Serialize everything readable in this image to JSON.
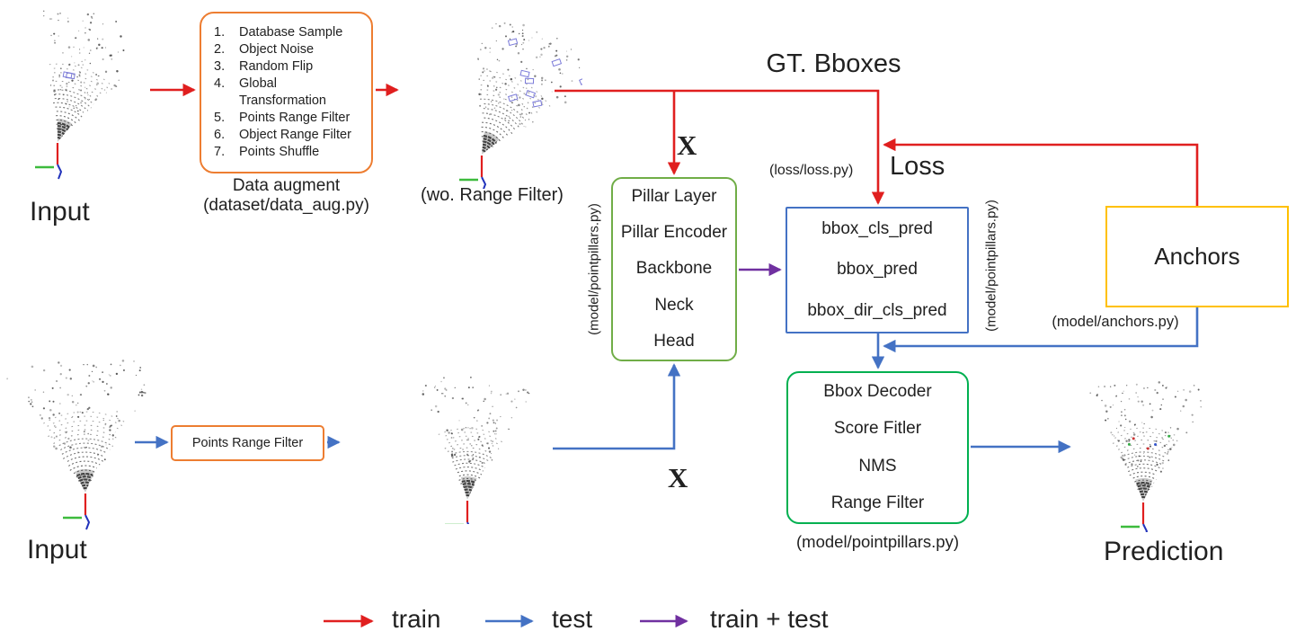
{
  "colors": {
    "train_red": "#e01f1f",
    "test_blue": "#4472c4",
    "train_test_purple": "#7030a0",
    "augment_orange": "#ed7d31",
    "model_green": "#70ad47",
    "post_green": "#00b050",
    "anchors_yellow": "#ffc000",
    "text": "#212121"
  },
  "labels": {
    "input_train": "Input",
    "input_test": "Input",
    "prediction": "Prediction",
    "gt_bboxes": "GT. Bboxes",
    "loss": "Loss",
    "loss_file": "(loss/loss.py)",
    "x_train": "X",
    "x_test": "X",
    "wo_range_filter": "(wo. Range Filter)",
    "augment_caption": "Data augment",
    "augment_file": "(dataset/data_aug.py)",
    "pointpillars_file_left": "(model/pointpillars.py)",
    "pointpillars_file_right": "(model/pointpillars.py)",
    "pointpillars_file_bottom": "(model/pointpillars.py)",
    "anchors_file": "(model/anchors.py)"
  },
  "augment_box": {
    "items": [
      {
        "num": "1.",
        "label": "Database Sample"
      },
      {
        "num": "2.",
        "label": "Object Noise"
      },
      {
        "num": "3.",
        "label": "Random Flip"
      },
      {
        "num": "4.",
        "label": "Global Transformation"
      },
      {
        "num": "5.",
        "label": "Points Range Filter"
      },
      {
        "num": "6.",
        "label": "Object Range Filter"
      },
      {
        "num": "7.",
        "label": "Points Shuffle"
      }
    ]
  },
  "points_range_filter_box": {
    "label": "Points Range Filter"
  },
  "pillar_model_box": {
    "items": [
      "Pillar Layer",
      "Pillar Encoder",
      "Backbone",
      "Neck",
      "Head"
    ]
  },
  "pred_box": {
    "items": [
      "bbox_cls_pred",
      "bbox_pred",
      "bbox_dir_cls_pred"
    ]
  },
  "anchors_box": {
    "label": "Anchors"
  },
  "post_process_box": {
    "items": [
      "Bbox Decoder",
      "Score Fitler",
      "NMS",
      "Range Filter"
    ]
  },
  "legend": [
    {
      "label": "train"
    },
    {
      "label": "test"
    },
    {
      "label": "train + test"
    }
  ]
}
